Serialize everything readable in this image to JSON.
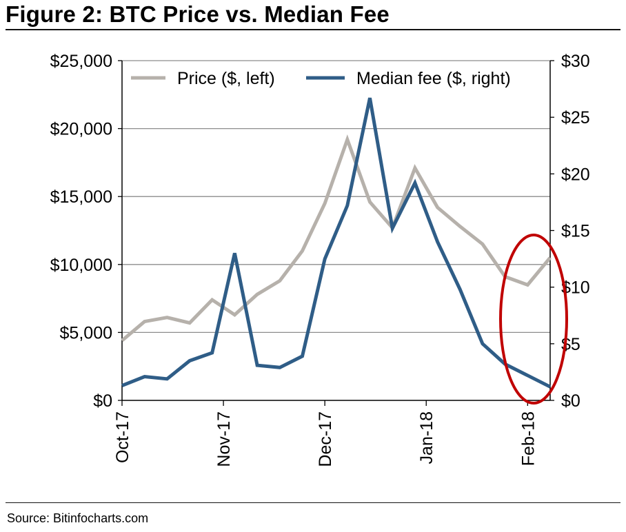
{
  "figure": {
    "title": "Figure 2: BTC Price vs. Median Fee",
    "source": "Source: Bitinfocharts.com"
  },
  "colors": {
    "price": "#b6b1ab",
    "fee": "#2f5d87",
    "highlight": "#c00000",
    "gridline": "#8c8c8c"
  },
  "chart_data": {
    "type": "line",
    "x_tick_labels": [
      "Oct-17",
      "Nov-17",
      "Dec-17",
      "Jan-18",
      "Feb-18"
    ],
    "x_tick_positions": [
      0,
      4.5,
      9,
      13.5,
      18
    ],
    "y_left": {
      "range": [
        0,
        25000
      ],
      "ticks": [
        0,
        5000,
        10000,
        15000,
        20000,
        25000
      ],
      "tick_labels": [
        "$0",
        "$5,000",
        "$10,000",
        "$15,000",
        "$20,000",
        "$25,000"
      ]
    },
    "y_right": {
      "range": [
        0,
        30
      ],
      "ticks": [
        0,
        5,
        10,
        15,
        20,
        25,
        30
      ],
      "tick_labels": [
        "$0",
        "$5",
        "$10",
        "$15",
        "$20",
        "$25",
        "$30"
      ]
    },
    "grid": true,
    "legend_position": "top",
    "series": [
      {
        "name": "Price ($, left)",
        "axis": "left",
        "values": [
          4400,
          5800,
          6100,
          5700,
          7400,
          6300,
          7800,
          8800,
          11000,
          14500,
          19200,
          14600,
          12700,
          17100,
          14200,
          12800,
          11500,
          9100,
          8500,
          10500
        ]
      },
      {
        "name": "Median fee ($, right)",
        "axis": "right",
        "values": [
          1.3,
          2.1,
          1.9,
          3.5,
          4.2,
          13.0,
          3.1,
          2.9,
          3.9,
          12.5,
          17.2,
          26.7,
          15.2,
          19.2,
          14.0,
          9.8,
          5.0,
          3.2,
          2.2,
          1.2
        ]
      }
    ],
    "annotations": [
      "red ellipse highlighting the most recent data points (Feb-18)"
    ]
  }
}
